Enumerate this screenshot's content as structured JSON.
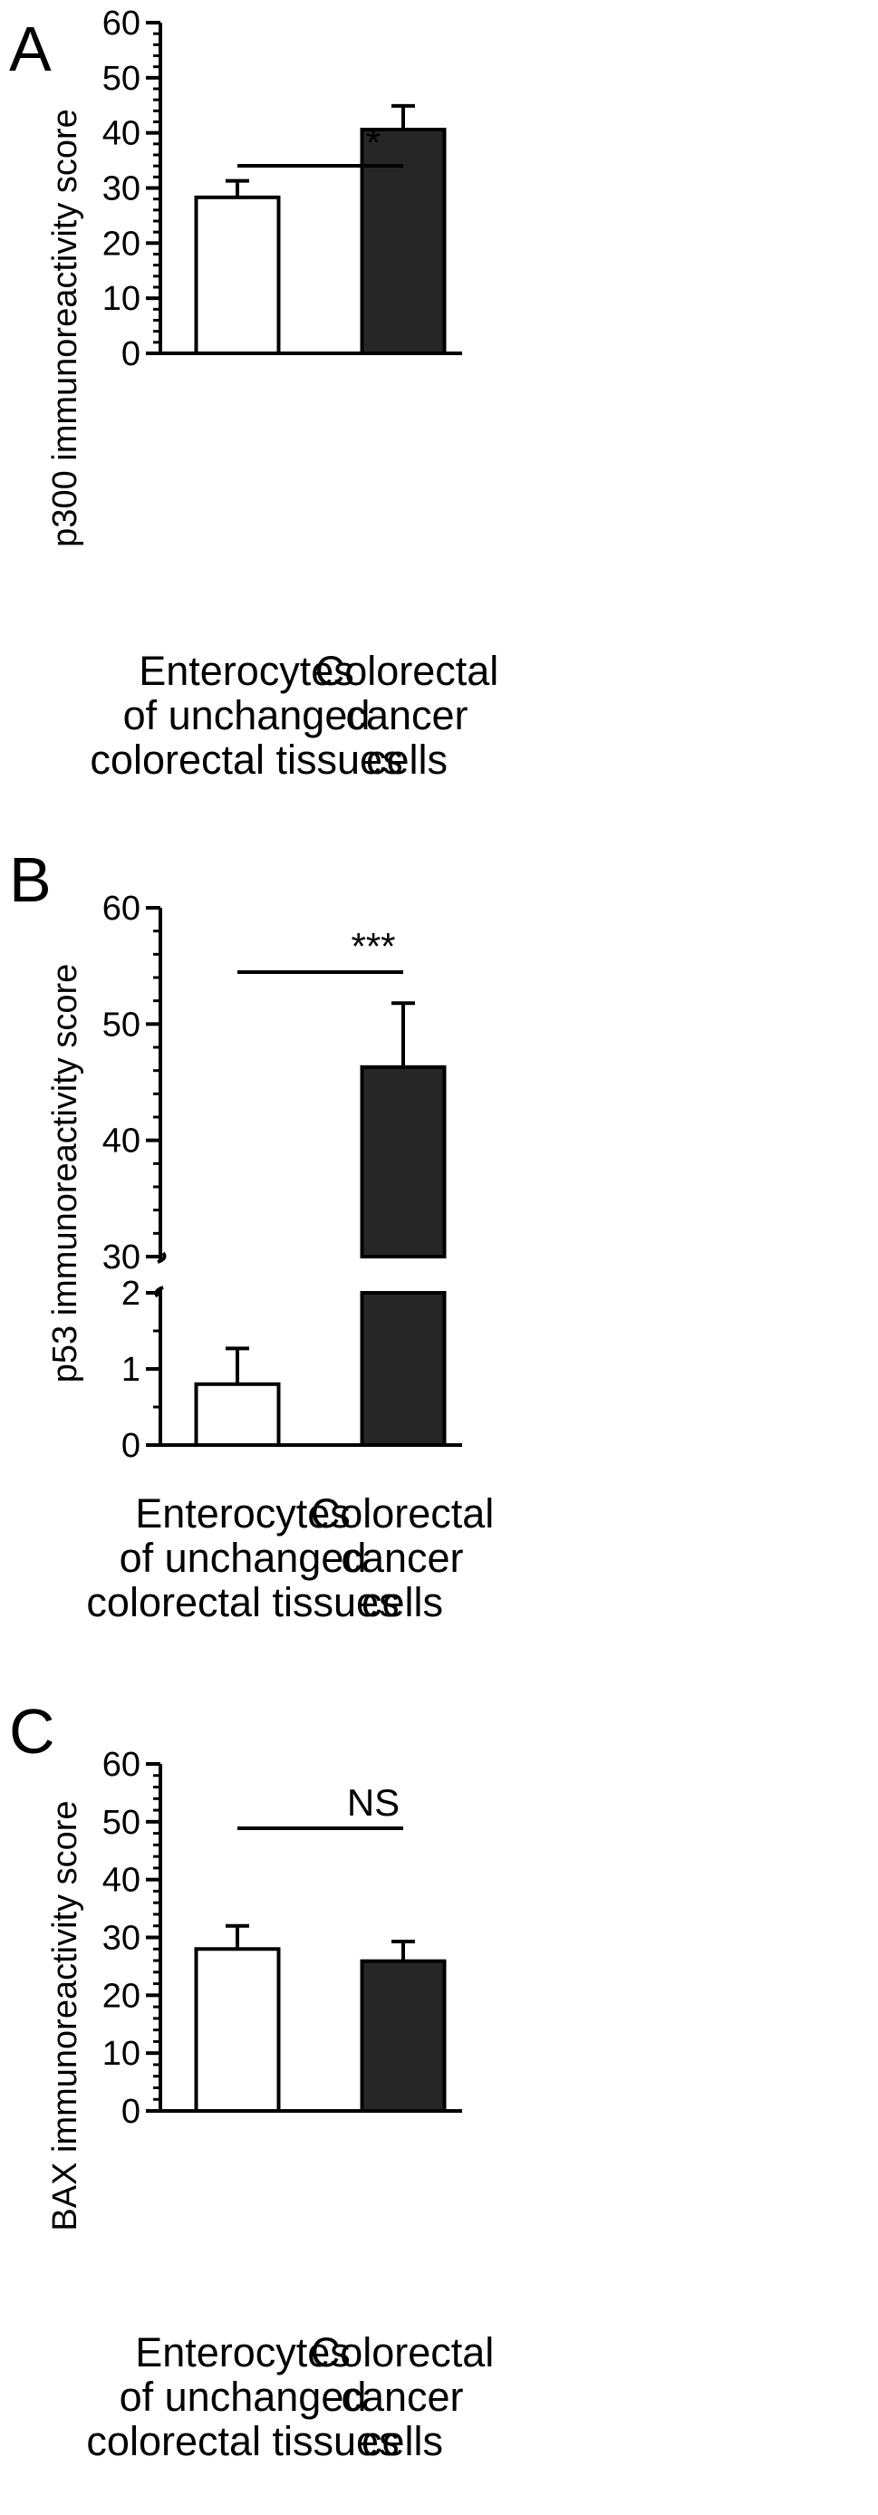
{
  "chart_data": [
    {
      "type": "bar",
      "panel": "A",
      "ylabel": "p300 immunoreactivity score",
      "categories": [
        [
          "Enterocytes",
          "of unchanged",
          "colorectal tissues"
        ],
        [
          "Colorectal",
          "cancer",
          "cells"
        ]
      ],
      "values": [
        28.3,
        40.6
      ],
      "errors": [
        3.0,
        4.3
      ],
      "bar_colors": [
        "#ffffff",
        "#262626"
      ],
      "ylim": [
        0,
        60
      ],
      "yticks": [
        "0",
        "10",
        "20",
        "30",
        "40",
        "50",
        "60"
      ],
      "significance": "*"
    },
    {
      "type": "bar",
      "panel": "B",
      "ylabel": "p53 immunoreactivity score",
      "categories": [
        [
          "Enterocytes",
          "of unchanged",
          "colorectal tissues"
        ],
        [
          "Colorectal",
          "cancer",
          "cells"
        ]
      ],
      "values": [
        0.8,
        46.3
      ],
      "errors": [
        0.47,
        5.5
      ],
      "bar_colors": [
        "#ffffff",
        "#262626"
      ],
      "broken_axis": {
        "lower": [
          0,
          2
        ],
        "upper": [
          30,
          60
        ]
      },
      "yticks_lower": [
        "0",
        "1",
        "2"
      ],
      "yticks_upper": [
        "30",
        "40",
        "50",
        "60"
      ],
      "significance": "***"
    },
    {
      "type": "bar",
      "panel": "C",
      "ylabel": "BAX immunoreactivity score",
      "categories": [
        [
          "Enterocytes",
          "of unchanged",
          "colorectal tissues"
        ],
        [
          "Colorectal",
          "cancer",
          "cells"
        ]
      ],
      "values": [
        28.0,
        25.9
      ],
      "errors": [
        4.0,
        3.4
      ],
      "bar_colors": [
        "#ffffff",
        "#262626"
      ],
      "ylim": [
        0,
        60
      ],
      "yticks": [
        "0",
        "10",
        "20",
        "30",
        "40",
        "50",
        "60"
      ],
      "significance": "NS"
    }
  ]
}
